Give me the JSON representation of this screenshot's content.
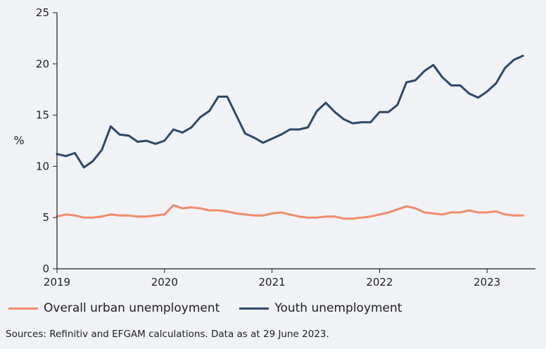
{
  "chart_data": {
    "type": "line",
    "title": "",
    "xlabel": "",
    "ylabel": "%",
    "ylim": [
      0,
      25
    ],
    "xlim": [
      2019.0,
      2023.45
    ],
    "yticks": [
      0,
      5,
      10,
      15,
      20,
      25
    ],
    "xticks": [
      {
        "value": 2019,
        "label": "2019"
      },
      {
        "value": 2020,
        "label": "2020"
      },
      {
        "value": 2021,
        "label": "2021"
      },
      {
        "value": 2022,
        "label": "2022"
      },
      {
        "value": 2023,
        "label": "2023"
      }
    ],
    "x_start": 2019.0,
    "x_step": 0.0833333,
    "grid": false,
    "legend_position": "bottom-left",
    "series": [
      {
        "name": "Overall urban unemployment",
        "color": "#f08c6c",
        "values": [
          5.1,
          5.3,
          5.2,
          5.0,
          5.0,
          5.1,
          5.3,
          5.2,
          5.2,
          5.1,
          5.1,
          5.2,
          5.3,
          6.2,
          5.9,
          6.0,
          5.9,
          5.7,
          5.7,
          5.6,
          5.4,
          5.3,
          5.2,
          5.2,
          5.4,
          5.5,
          5.3,
          5.1,
          5.0,
          5.0,
          5.1,
          5.1,
          4.9,
          4.9,
          5.0,
          5.1,
          5.3,
          5.5,
          5.8,
          6.1,
          5.9,
          5.5,
          5.4,
          5.3,
          5.5,
          5.5,
          5.7,
          5.5,
          5.5,
          5.6,
          5.3,
          5.2,
          5.2
        ]
      },
      {
        "name": "Youth unemployment",
        "color": "#2e4766",
        "values": [
          11.2,
          11.0,
          11.3,
          9.9,
          10.5,
          11.6,
          13.9,
          13.1,
          13.0,
          12.4,
          12.5,
          12.2,
          12.5,
          13.6,
          13.3,
          13.8,
          14.8,
          15.4,
          16.8,
          16.8,
          15.0,
          13.2,
          12.8,
          12.3,
          12.7,
          13.1,
          13.6,
          13.6,
          13.8,
          15.4,
          16.2,
          15.3,
          14.6,
          14.2,
          14.3,
          14.3,
          15.3,
          15.3,
          16.0,
          18.2,
          18.4,
          19.3,
          19.9,
          18.7,
          17.9,
          17.9,
          17.1,
          16.7,
          17.3,
          18.1,
          19.6,
          20.4,
          20.8
        ]
      }
    ],
    "source_note": "Sources: Refinitiv and EFGAM calculations. Data as at 29 June 2023."
  }
}
